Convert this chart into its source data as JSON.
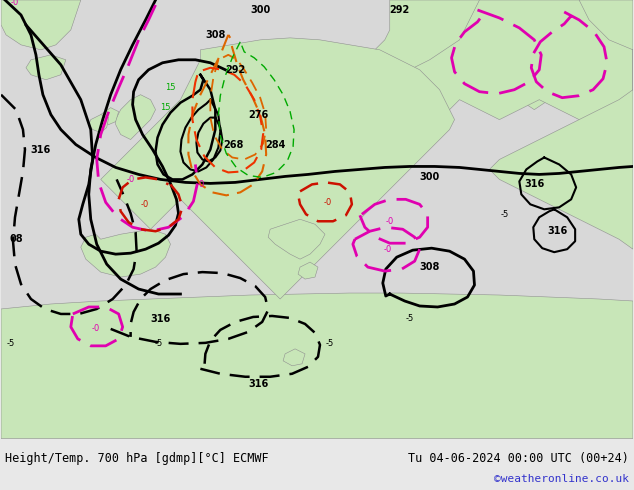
{
  "title_left": "Height/Temp. 700 hPa [gdmp][°C] ECMWF",
  "title_right": "Tu 04-06-2024 00:00 UTC (00+24)",
  "watermark": "©weatheronline.co.uk",
  "land_color": "#c8e6b8",
  "sea_color": "#d8d8d8",
  "border_color": "#909090",
  "black_line_color": "#000000",
  "pink_line_color": "#e000b0",
  "red_line_color": "#cc1100",
  "orange_line_color": "#dd6600",
  "green_line_color": "#00aa00",
  "title_fontsize": 8.5,
  "watermark_color": "#3333cc",
  "bg_color": "#e8e8e8",
  "map_bg": "#d4d4d4"
}
